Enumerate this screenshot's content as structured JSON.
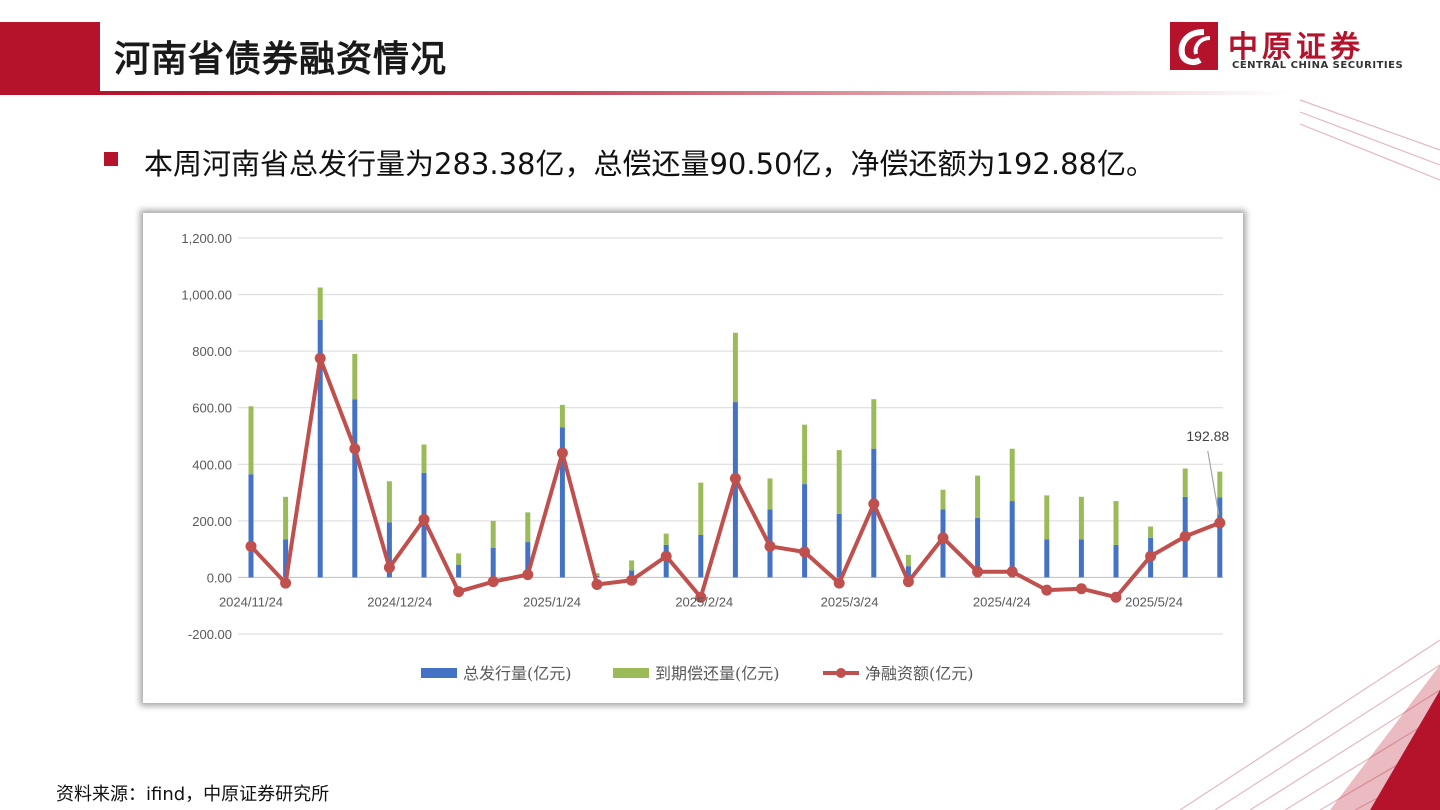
{
  "header": {
    "title": "河南省债券融资情况",
    "logo_cn": "中原证券",
    "logo_en": "CENTRAL CHINA SECURITIES",
    "accent_color": "#b5132c"
  },
  "summary": "本周河南省总发行量为283.38亿，总偿还量90.50亿，净偿还额为192.88亿。",
  "source": "资料来源：ifind，中原证券研究所",
  "chart_data": {
    "type": "bar",
    "x_tick_labels": [
      "2024/11/24",
      "2024/12/24",
      "2025/1/24",
      "2025/2/24",
      "2025/3/24",
      "2025/4/24",
      "2025/5/24"
    ],
    "x_tick_positions": [
      0,
      4.3,
      8.7,
      13.1,
      17.3,
      21.7,
      26.1
    ],
    "y_tick_labels": [
      "1,200.00",
      "1,000.00",
      "800.00",
      "600.00",
      "400.00",
      "200.00",
      "0.00",
      "-200.00"
    ],
    "ylim": [
      -200,
      1200
    ],
    "grid": true,
    "legend_position": "bottom",
    "series": [
      {
        "name": "总发行量(亿元)",
        "kind": "stacked-bar",
        "color": "#4472c4",
        "values": [
          365,
          135,
          910,
          630,
          195,
          370,
          45,
          105,
          125,
          530,
          5,
          25,
          115,
          150,
          620,
          240,
          330,
          225,
          455,
          40,
          240,
          210,
          270,
          135,
          135,
          115,
          140,
          285,
          283.38
        ]
      },
      {
        "name": "到期偿还量(亿元)",
        "kind": "stacked-bar",
        "color": "#9bbb59",
        "values": [
          240,
          150,
          115,
          160,
          145,
          100,
          40,
          95,
          105,
          80,
          10,
          35,
          40,
          185,
          245,
          110,
          210,
          225,
          175,
          40,
          70,
          150,
          185,
          155,
          150,
          155,
          40,
          100,
          90.5
        ]
      },
      {
        "name": "净融资额(亿元)",
        "kind": "line",
        "color": "#c0504d",
        "values": [
          110,
          -20,
          775,
          455,
          35,
          205,
          -50,
          -15,
          10,
          440,
          -25,
          -10,
          75,
          -70,
          350,
          110,
          90,
          -20,
          260,
          -15,
          140,
          20,
          20,
          -45,
          -40,
          -70,
          75,
          145,
          192.88
        ]
      }
    ],
    "annotation": {
      "text": "192.88",
      "index": 28
    }
  }
}
